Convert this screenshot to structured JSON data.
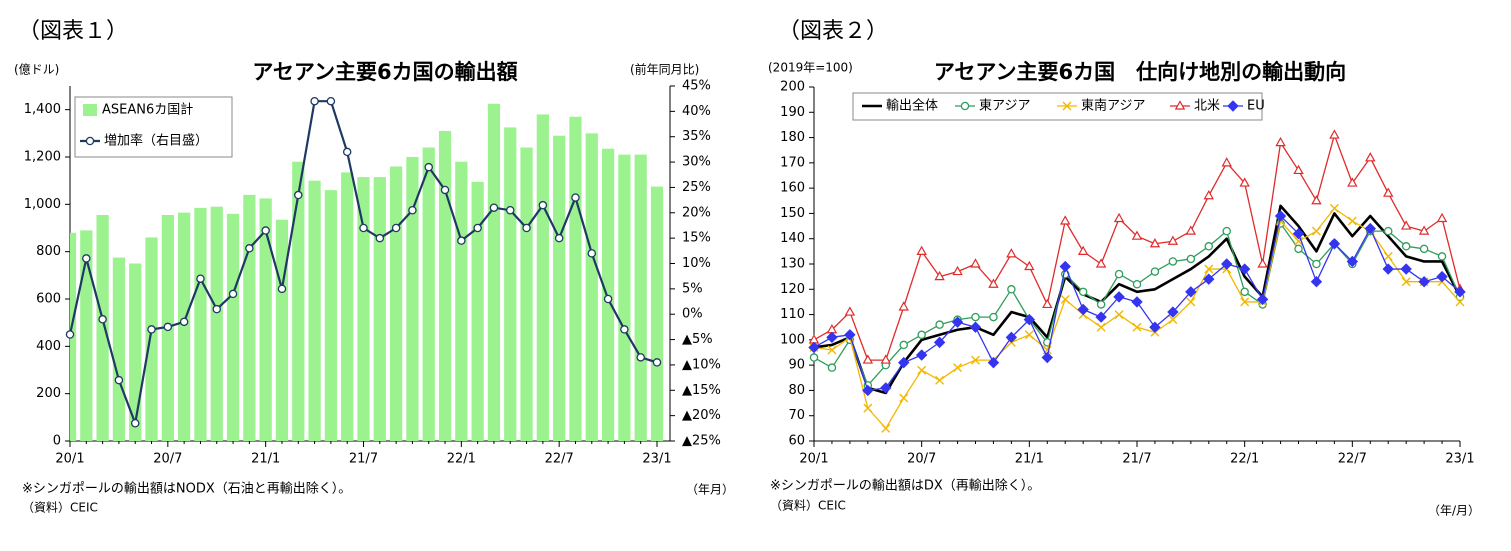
{
  "chart_data": [
    {
      "type": "bar",
      "figure_label": "（図表１）",
      "title": "アセアン主要6カ国の輸出額",
      "y_label": "(億ドル)",
      "y2_label": "(前年同月比)",
      "x_label": "（年月）",
      "note": "※シンガポールの輸出額はNODX（石油と再輸出除く）。",
      "source": "（資料）CEIC",
      "categories": [
        "20/1",
        null,
        null,
        null,
        null,
        null,
        "20/7",
        null,
        null,
        null,
        null,
        null,
        "21/1",
        null,
        null,
        null,
        null,
        null,
        "21/7",
        null,
        null,
        null,
        null,
        null,
        "22/1",
        null,
        null,
        null,
        null,
        null,
        "22/7",
        null,
        null,
        null,
        null,
        null,
        "23/1"
      ],
      "series": [
        {
          "name": "ASEAN6カ国計",
          "color": "#9cf28f",
          "type": "bar",
          "values": [
            880,
            890,
            955,
            775,
            750,
            860,
            955,
            965,
            985,
            990,
            960,
            1040,
            1025,
            935,
            1180,
            1100,
            1060,
            1135,
            1115,
            1115,
            1160,
            1200,
            1240,
            1310,
            1180,
            1095,
            1425,
            1325,
            1240,
            1380,
            1290,
            1370,
            1300,
            1235,
            1210,
            1210,
            1075
          ]
        },
        {
          "name": "増加率（右目盛）",
          "color": "#1f3864",
          "type": "line",
          "axis": "y2",
          "marker": "circle",
          "values": [
            -4,
            11,
            -1,
            -13,
            -21.5,
            -3,
            -2.5,
            -1.5,
            7,
            1,
            4,
            13,
            16.5,
            5,
            23.5,
            42,
            42,
            32,
            17,
            15,
            17,
            20.5,
            29,
            24.5,
            14.5,
            17,
            21,
            20.5,
            17,
            21.5,
            15,
            23,
            12,
            3,
            -3,
            -8.5,
            -9.5
          ]
        }
      ],
      "ylim": [
        0,
        1500
      ],
      "yticks": [
        0,
        200,
        400,
        600,
        800,
        {
          "value": 1000,
          "label": "1,000"
        },
        {
          "value": 1200,
          "label": "1,200"
        },
        {
          "value": 1400,
          "label": "1,400"
        }
      ],
      "y2lim": [
        -25,
        45
      ],
      "y2ticks": [
        {
          "value": -25,
          "label": "▲25%"
        },
        {
          "value": -20,
          "label": "▲20%"
        },
        {
          "value": -15,
          "label": "▲15%"
        },
        {
          "value": -10,
          "label": "▲10%"
        },
        {
          "value": -5,
          "label": "▲5%"
        },
        {
          "value": 0,
          "label": "0%"
        },
        {
          "value": 5,
          "label": "5%"
        },
        {
          "value": 10,
          "label": "10%"
        },
        {
          "value": 15,
          "label": "15%"
        },
        {
          "value": 20,
          "label": "20%"
        },
        {
          "value": 25,
          "label": "25%"
        },
        {
          "value": 30,
          "label": "30%"
        },
        {
          "value": 35,
          "label": "35%"
        },
        {
          "value": 40,
          "label": "40%"
        },
        {
          "value": 45,
          "label": "45%"
        }
      ],
      "legend": "upper left"
    },
    {
      "type": "line",
      "figure_label": "（図表２）",
      "title": "アセアン主要6カ国　仕向け地別の輸出動向",
      "y_label": "(2019年=100)",
      "x_label": "（年/月）",
      "note": "※シンガポールの輸出額はDX（再輸出除く）。",
      "source": "（資料）CEIC",
      "categories": [
        "20/1",
        null,
        null,
        null,
        null,
        null,
        "20/7",
        null,
        null,
        null,
        null,
        null,
        "21/1",
        null,
        null,
        null,
        null,
        null,
        "21/7",
        null,
        null,
        null,
        null,
        null,
        "22/1",
        null,
        null,
        null,
        null,
        null,
        "22/7",
        null,
        null,
        null,
        null,
        null,
        "23/1"
      ],
      "series": [
        {
          "name": "輸出全体",
          "color": "#000000",
          "marker": "none",
          "values": [
            97,
            98,
            101,
            81,
            79,
            91,
            100,
            102,
            104,
            105,
            102,
            111,
            109,
            101,
            125,
            118,
            115,
            122,
            119,
            120,
            124,
            128,
            133,
            140,
            125,
            117,
            153,
            145,
            135,
            150,
            141,
            149,
            141,
            133,
            131,
            131,
            117
          ]
        },
        {
          "name": "東アジア",
          "color": "#2e9e5b",
          "marker": "circle",
          "values": [
            93,
            89,
            100,
            82,
            90,
            98,
            102,
            106,
            108,
            109,
            109,
            120,
            108,
            99,
            126,
            119,
            114,
            126,
            122,
            127,
            131,
            132,
            137,
            143,
            119,
            114,
            146,
            136,
            130,
            138,
            130,
            143,
            143,
            137,
            136,
            133,
            117
          ]
        },
        {
          "name": "東南アジア",
          "color": "#f2b800",
          "marker": "x",
          "values": [
            97,
            96,
            101,
            73,
            65,
            77,
            88,
            84,
            89,
            92,
            92,
            99,
            102,
            96,
            116,
            110,
            105,
            110,
            105,
            103,
            108,
            115,
            128,
            128,
            115,
            115,
            147,
            139,
            143,
            152,
            147,
            143,
            133,
            123,
            123,
            123,
            115
          ]
        },
        {
          "name": "北米",
          "color": "#e02b2b",
          "marker": "triangle",
          "values": [
            100,
            104,
            111,
            92,
            92,
            113,
            135,
            125,
            127,
            130,
            122,
            134,
            129,
            114,
            147,
            135,
            130,
            148,
            141,
            138,
            139,
            143,
            157,
            170,
            162,
            130,
            178,
            167,
            155,
            181,
            162,
            172,
            158,
            145,
            143,
            148,
            120
          ]
        },
        {
          "name": "EU",
          "color": "#3535f0",
          "marker": "diamond",
          "values": [
            97,
            101,
            102,
            80,
            81,
            91,
            94,
            99,
            107,
            105,
            91,
            101,
            108,
            93,
            129,
            112,
            109,
            117,
            115,
            105,
            111,
            119,
            124,
            130,
            128,
            116,
            149,
            142,
            123,
            138,
            131,
            144,
            128,
            128,
            123,
            125,
            119
          ]
        }
      ],
      "ylim": [
        60,
        200
      ],
      "yticks": [
        60,
        70,
        80,
        90,
        100,
        110,
        120,
        130,
        140,
        150,
        160,
        170,
        180,
        190,
        200
      ],
      "legend": "upper left"
    }
  ]
}
